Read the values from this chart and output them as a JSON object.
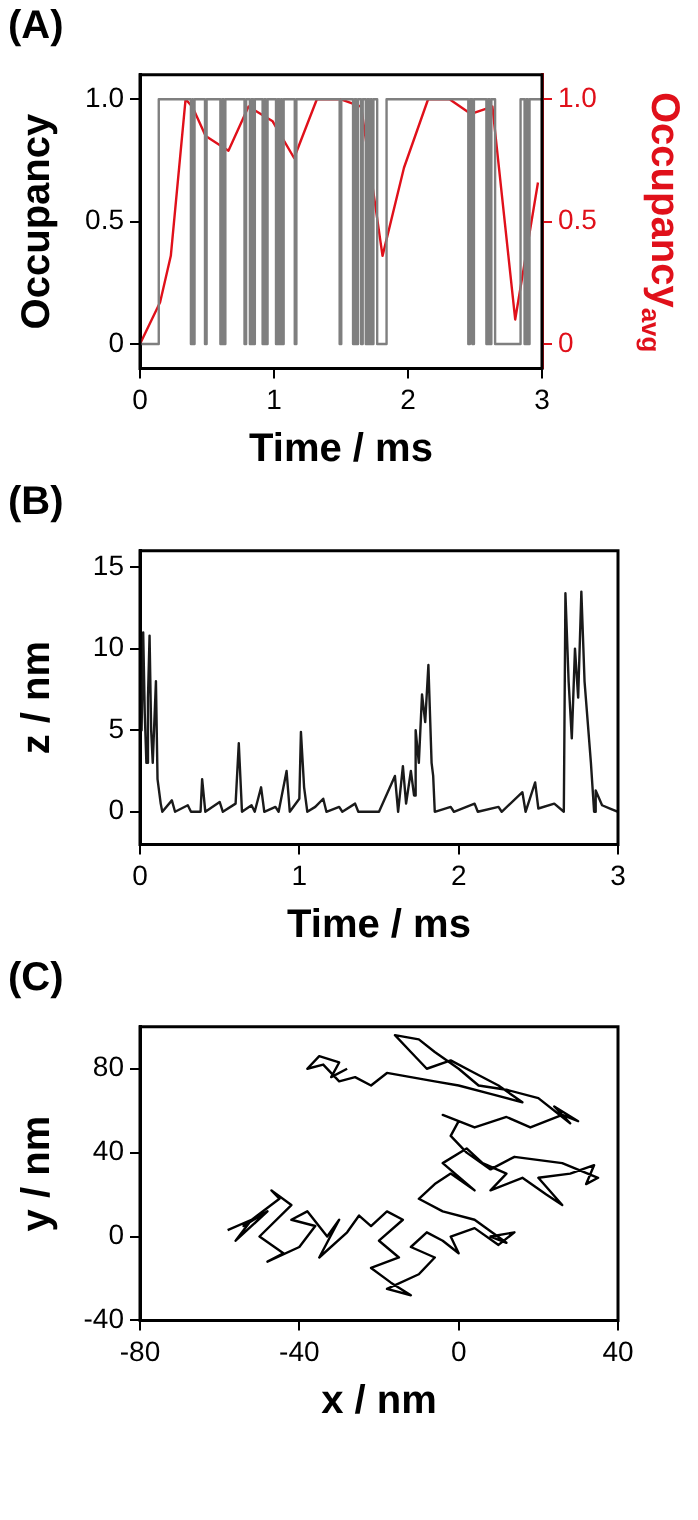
{
  "chart_data": [
    {
      "title": "(A)",
      "type": "step",
      "xlabel": "Time / ms",
      "ylabel": "Occupancy",
      "y2label": "Occupancy$_{avg}$",
      "xlim": [
        0,
        3
      ],
      "xticks": [
        0,
        1,
        2,
        3
      ],
      "ylim": [
        -0.1,
        1.1
      ],
      "yticks": [
        0,
        0.5,
        {
          "value": 1,
          "label": "1.0"
        }
      ],
      "y2lim": [
        -0.1,
        1.1
      ],
      "y2ticks": [
        0,
        0.5,
        {
          "value": 1,
          "label": "1.0"
        }
      ],
      "grid": false,
      "legend": false,
      "marker": "none",
      "series": [
        {
          "type": "step",
          "color": "#7f7f7f",
          "x": [
            0,
            0.14,
            0.38,
            0.392,
            0.395,
            0.407,
            0.485,
            0.497,
            0.6,
            0.612,
            0.625,
            0.637,
            0.78,
            0.792,
            0.82,
            0.832,
            0.845,
            0.857,
            0.915,
            0.927,
            0.94,
            0.952,
            1.015,
            1.027,
            1.04,
            1.052,
            1.06,
            1.072,
            1.155,
            1.167,
            1.49,
            1.502,
            1.59,
            1.602,
            1.615,
            1.627,
            1.65,
            1.662,
            1.685,
            1.697,
            1.71,
            1.722,
            1.73,
            1.742,
            1.77,
            1.84,
            2.45,
            2.462,
            2.48,
            2.492,
            2.585,
            2.597,
            2.61,
            2.622,
            2.65,
            2.84,
            2.87,
            2.882,
            2.895,
            2.907,
            3
          ],
          "values": [
            0,
            1,
            0,
            1,
            0,
            1,
            0,
            1,
            0,
            1,
            0,
            1,
            0,
            1,
            0,
            1,
            0,
            1,
            0,
            1,
            0,
            1,
            0,
            1,
            0,
            1,
            0,
            1,
            0,
            1,
            0,
            1,
            0,
            1,
            0,
            1,
            0,
            1,
            0,
            1,
            0,
            1,
            0,
            1,
            0,
            1,
            0,
            1,
            0,
            1,
            0,
            1,
            0,
            1,
            0,
            1,
            0,
            1,
            0,
            1,
            1
          ]
        },
        {
          "type": "line",
          "axis": "y2",
          "color": "#e0101a",
          "x": [
            0,
            0.15,
            0.23,
            0.34,
            0.39,
            0.49,
            0.66,
            0.81,
            0.99,
            1.15,
            1.32,
            1.5,
            1.65,
            1.81,
            1.97,
            2.15,
            2.31,
            2.47,
            2.63,
            2.8,
            2.97
          ],
          "values": [
            0,
            0.17,
            0.36,
            1.0,
            0.97,
            0.85,
            0.79,
            0.97,
            0.91,
            0.76,
            1.0,
            1.0,
            0.97,
            0.36,
            0.72,
            1.0,
            1.0,
            0.94,
            0.97,
            0.1,
            0.66
          ]
        }
      ]
    },
    {
      "title": "(B)",
      "type": "line",
      "xlabel": "Time / ms",
      "ylabel": "z / nm",
      "xlim": [
        0,
        3
      ],
      "xticks": [
        0,
        1,
        2,
        3
      ],
      "ylim": [
        -2,
        16
      ],
      "yticks": [
        0,
        5,
        10,
        15
      ],
      "grid": false,
      "legend": false,
      "marker": "none",
      "series": [
        {
          "color": "#1a1a1a",
          "x": [
            0,
            0.01,
            0.02,
            0.03,
            0.04,
            0.05,
            0.06,
            0.07,
            0.08,
            0.1,
            0.11,
            0.13,
            0.14,
            0.2,
            0.22,
            0.3,
            0.32,
            0.38,
            0.39,
            0.41,
            0.5,
            0.52,
            0.6,
            0.62,
            0.64,
            0.7,
            0.72,
            0.76,
            0.78,
            0.85,
            0.87,
            0.92,
            0.94,
            1.0,
            1.01,
            1.03,
            1.05,
            1.1,
            1.15,
            1.17,
            1.25,
            1.27,
            1.35,
            1.37,
            1.5,
            1.6,
            1.62,
            1.65,
            1.67,
            1.7,
            1.72,
            1.73,
            1.75,
            1.77,
            1.79,
            1.81,
            1.83,
            1.84,
            1.85,
            1.95,
            1.97,
            2.1,
            2.12,
            2.25,
            2.27,
            2.4,
            2.42,
            2.48,
            2.5,
            2.6,
            2.66,
            2.67,
            2.69,
            2.71,
            2.73,
            2.75,
            2.77,
            2.79,
            2.81,
            2.83,
            2.85,
            2.86,
            2.9,
            2.95,
            3.0
          ],
          "values": [
            8,
            5,
            11,
            6,
            3,
            7,
            10.8,
            5,
            3,
            8,
            2,
            0.5,
            0,
            0.7,
            0,
            0.4,
            0,
            0,
            2,
            0,
            0.6,
            0,
            0.5,
            4.2,
            0,
            0.4,
            0,
            1.5,
            0,
            0.3,
            0,
            2.5,
            0,
            0.8,
            4.9,
            1.5,
            0,
            0.3,
            0.8,
            0,
            0.3,
            0,
            0.5,
            0,
            0,
            2.2,
            0,
            2.8,
            0.5,
            2.5,
            1,
            5,
            3,
            7.2,
            5.5,
            9,
            3,
            2.2,
            0,
            0.3,
            0,
            0.5,
            0,
            0.3,
            0,
            1.2,
            0,
            1.8,
            0.2,
            0.5,
            0,
            13.4,
            8,
            4.5,
            10,
            7,
            13.5,
            8,
            5.5,
            3,
            0,
            1.3,
            0.4,
            0.2,
            0
          ]
        }
      ]
    },
    {
      "title": "(C)",
      "type": "line",
      "xlabel": "x / nm",
      "ylabel": "y / nm",
      "xlim": [
        -80,
        40
      ],
      "xticks": [
        -80,
        -40,
        0,
        40
      ],
      "ylim": [
        -40,
        100
      ],
      "yticks": [
        -40,
        0,
        40,
        80
      ],
      "grid": false,
      "legend": false,
      "marker": "none",
      "series": [
        {
          "color": "#000000",
          "x": [
            -58,
            -52,
            -56,
            -48,
            -54,
            -45,
            -47,
            -42,
            -50,
            -44,
            -48,
            -40,
            -36,
            -42,
            -38,
            -33,
            -30,
            -35,
            -28,
            -25,
            -22,
            -18,
            -14,
            -20,
            -15,
            -22,
            -17,
            -12,
            -18,
            -10,
            -6,
            -12,
            -8,
            -4,
            0,
            -2,
            4,
            10,
            14,
            8,
            12,
            4,
            -4,
            -10,
            -6,
            -2,
            4,
            -4,
            2,
            6,
            12,
            8,
            16,
            22,
            26,
            20,
            28,
            34,
            32,
            35,
            26,
            14,
            8,
            2,
            -2,
            0,
            -4,
            4,
            12,
            18,
            26,
            30,
            24,
            28,
            20,
            12,
            5,
            0,
            -6,
            -10,
            -16,
            -12,
            -8,
            -2,
            4,
            10,
            16,
            8,
            0,
            -6,
            -12,
            -18,
            -22,
            -26,
            -30,
            -34,
            -38,
            -35,
            -30,
            -32,
            -28
          ],
          "values": [
            3,
            8,
            -2,
            12,
            5,
            18,
            22,
            15,
            0,
            -8,
            -12,
            -5,
            5,
            8,
            12,
            0,
            8,
            -10,
            2,
            10,
            5,
            12,
            8,
            -2,
            -10,
            -15,
            -22,
            -28,
            -25,
            -18,
            -10,
            -5,
            2,
            -2,
            -8,
            0,
            4,
            -4,
            2,
            0,
            -3,
            8,
            12,
            18,
            25,
            30,
            22,
            35,
            42,
            35,
            30,
            22,
            28,
            20,
            15,
            28,
            30,
            34,
            25,
            28,
            35,
            38,
            32,
            40,
            48,
            55,
            58,
            52,
            57,
            52,
            58,
            55,
            62,
            54,
            66,
            70,
            72,
            80,
            88,
            94,
            96,
            88,
            80,
            84,
            78,
            72,
            64,
            68,
            72,
            74,
            76,
            78,
            72,
            76,
            74,
            82,
            80,
            86,
            83,
            76,
            80
          ]
        }
      ]
    }
  ]
}
